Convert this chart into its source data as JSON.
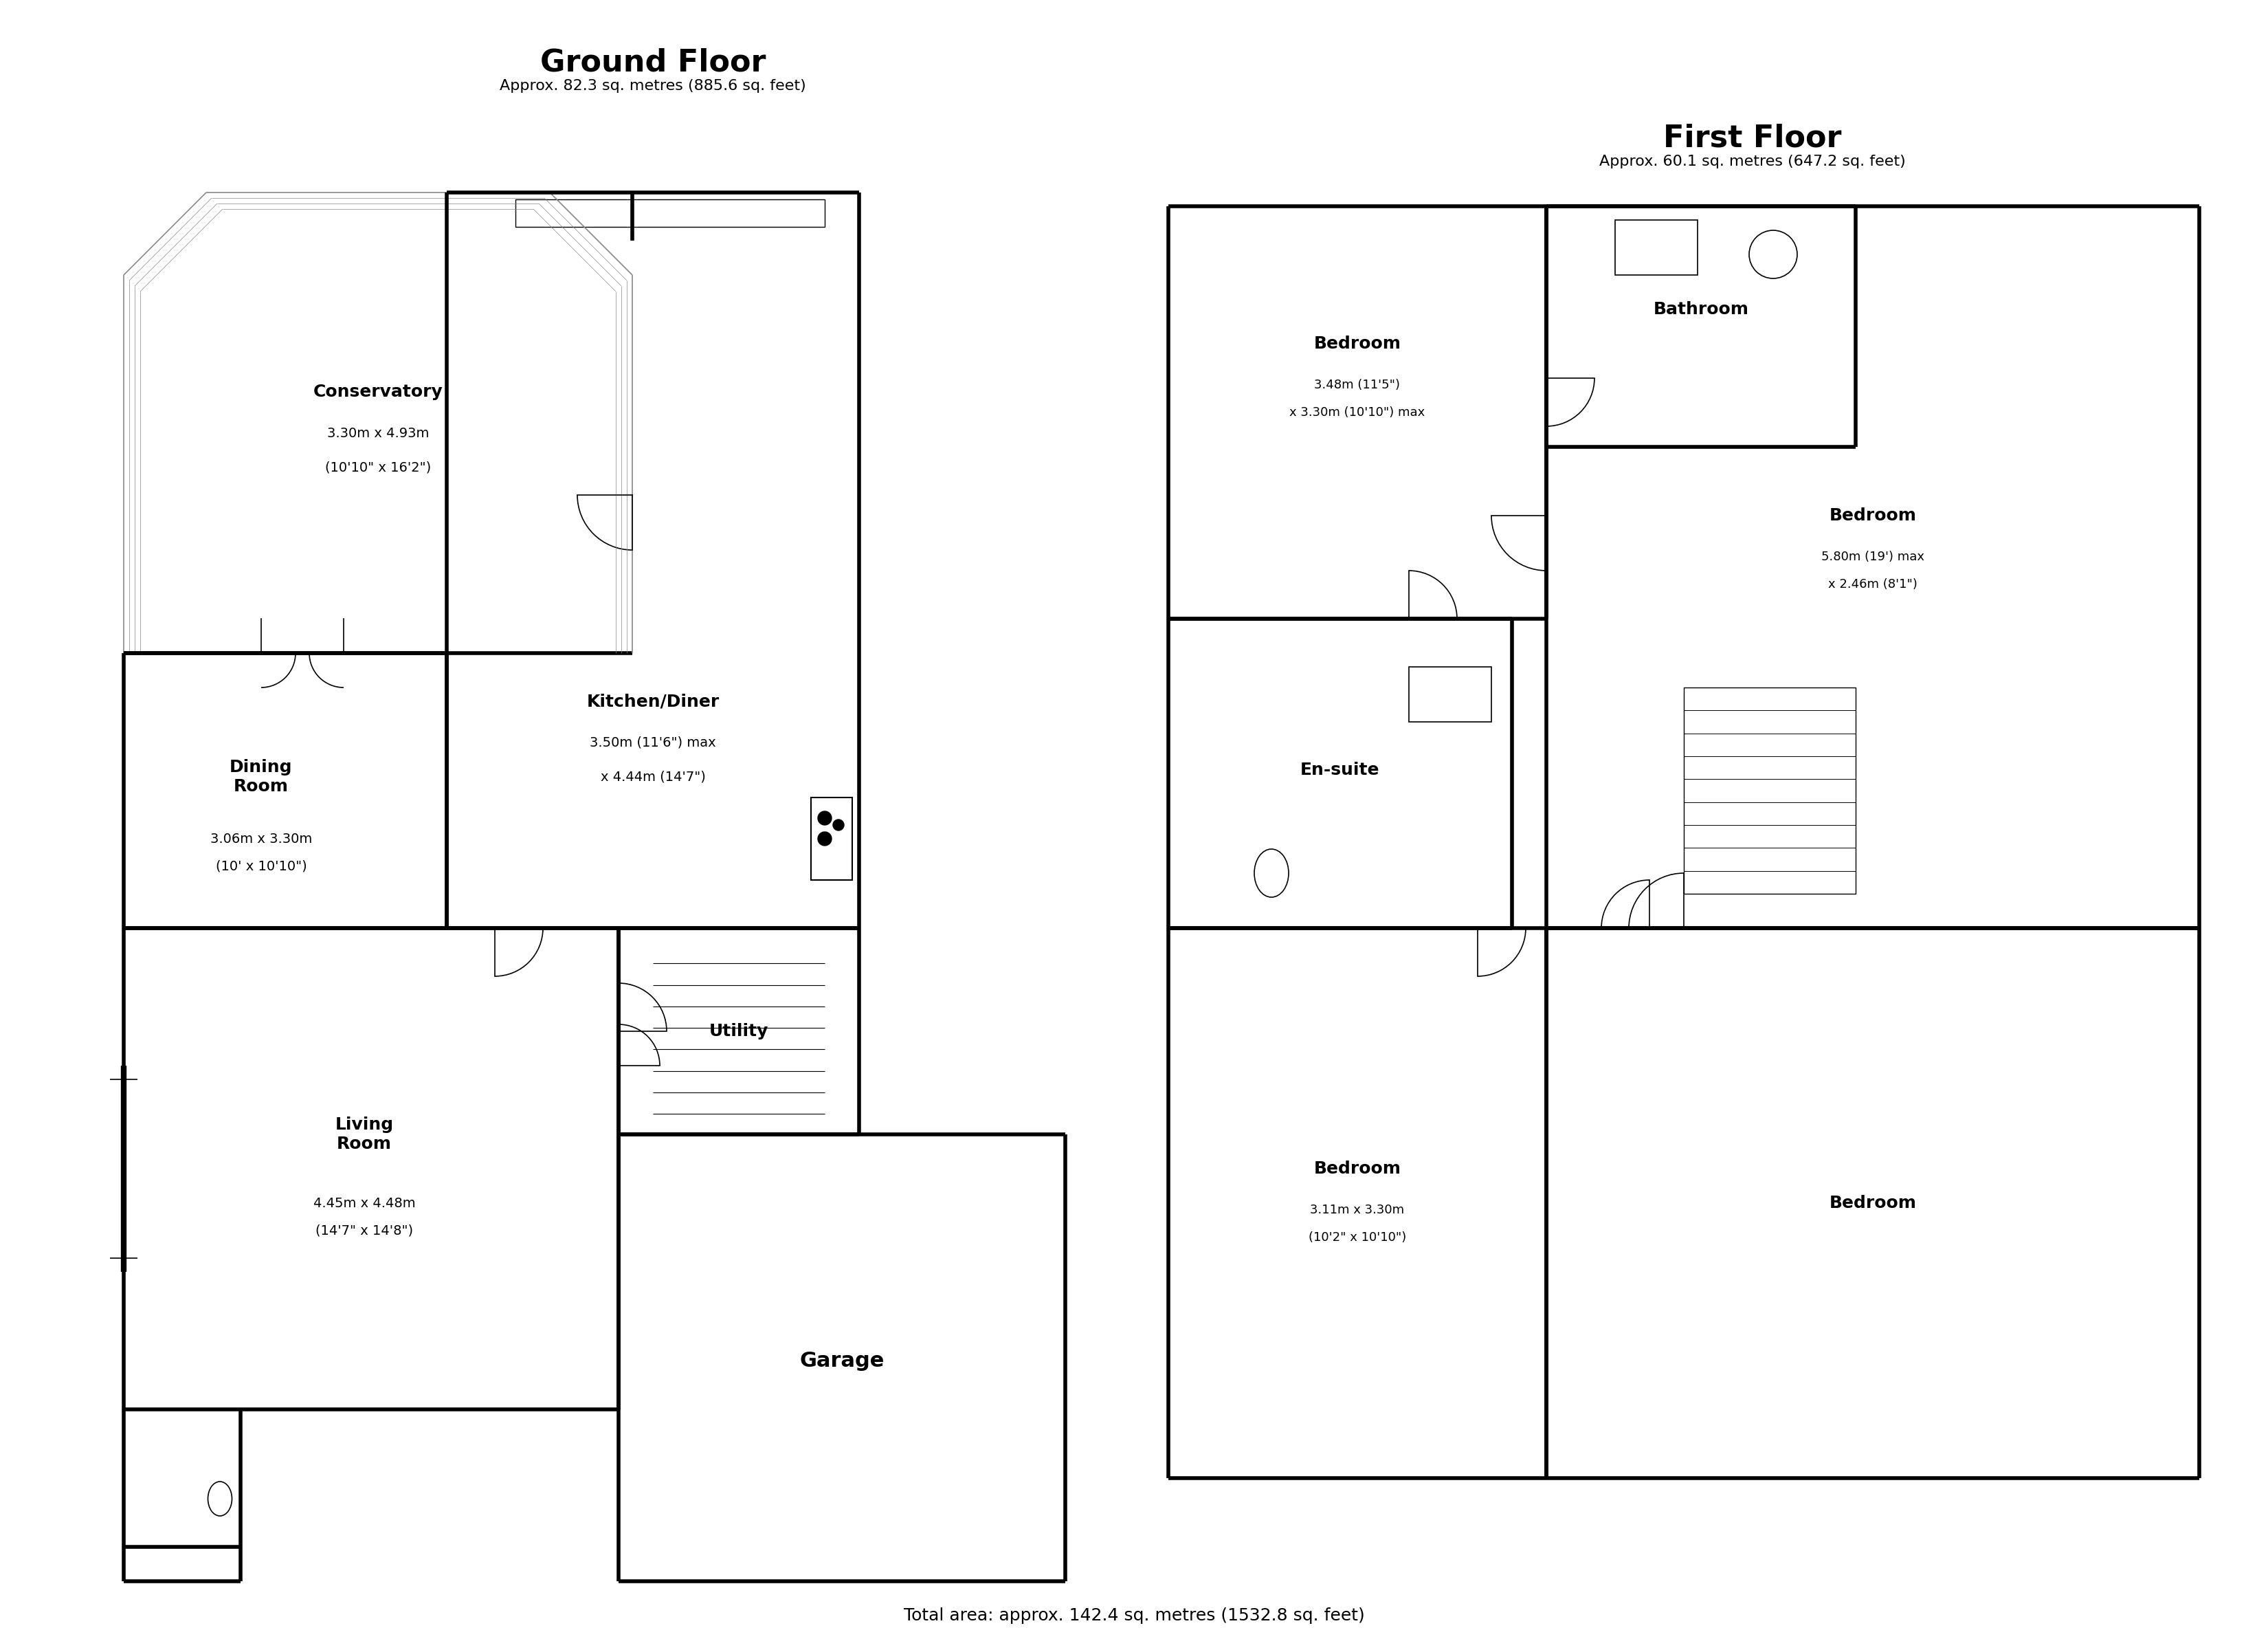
{
  "title_ground": "Ground Floor",
  "subtitle_ground": "Approx. 82.3 sq. metres (885.6 sq. feet)",
  "title_first": "First Floor",
  "subtitle_first": "Approx. 60.1 sq. metres (647.2 sq. feet)",
  "footer": "Total area: approx. 142.4 sq. metres (1532.8 sq. feet)",
  "wall_color": "#000000",
  "wall_thin_color": "#555555",
  "bg_color": "#ffffff",
  "room_labels": {
    "conservatory": {
      "name": "Conservatory",
      "dim1": "3.30m x 4.93m",
      "dim2": "(10'10\" x 16'2\")"
    },
    "dining_room": {
      "name": "Dining\nRoom",
      "dim1": "3.06m x 3.30m",
      "dim2": "(10' x 10'10\")"
    },
    "kitchen": {
      "name": "Kitchen/Diner",
      "dim1": "3.50m (11'6\") max",
      "dim2": "x 4.44m (14'7\")"
    },
    "living_room": {
      "name": "Living\nRoom",
      "dim1": "4.45m x 4.48m",
      "dim2": "(14'7\" x 14'8\")"
    },
    "utility": {
      "name": "Utility"
    },
    "garage": {
      "name": "Garage"
    },
    "bedroom1": {
      "name": "Bedroom",
      "dim1": "3.48m (11'5\")",
      "dim2": "x 3.30m (10'10\") max"
    },
    "ensuite": {
      "name": "En-suite"
    },
    "bathroom": {
      "name": "Bathroom"
    },
    "bedroom2": {
      "name": "Bedroom",
      "dim1": "5.80m (19') max",
      "dim2": "x 2.46m (8'1\")"
    },
    "bedroom3": {
      "name": "Bedroom",
      "dim1": "3.11m x 3.30m",
      "dim2": "(10'2\" x 10'10\")"
    },
    "bedroom4": {
      "name": "Bedroom"
    }
  }
}
